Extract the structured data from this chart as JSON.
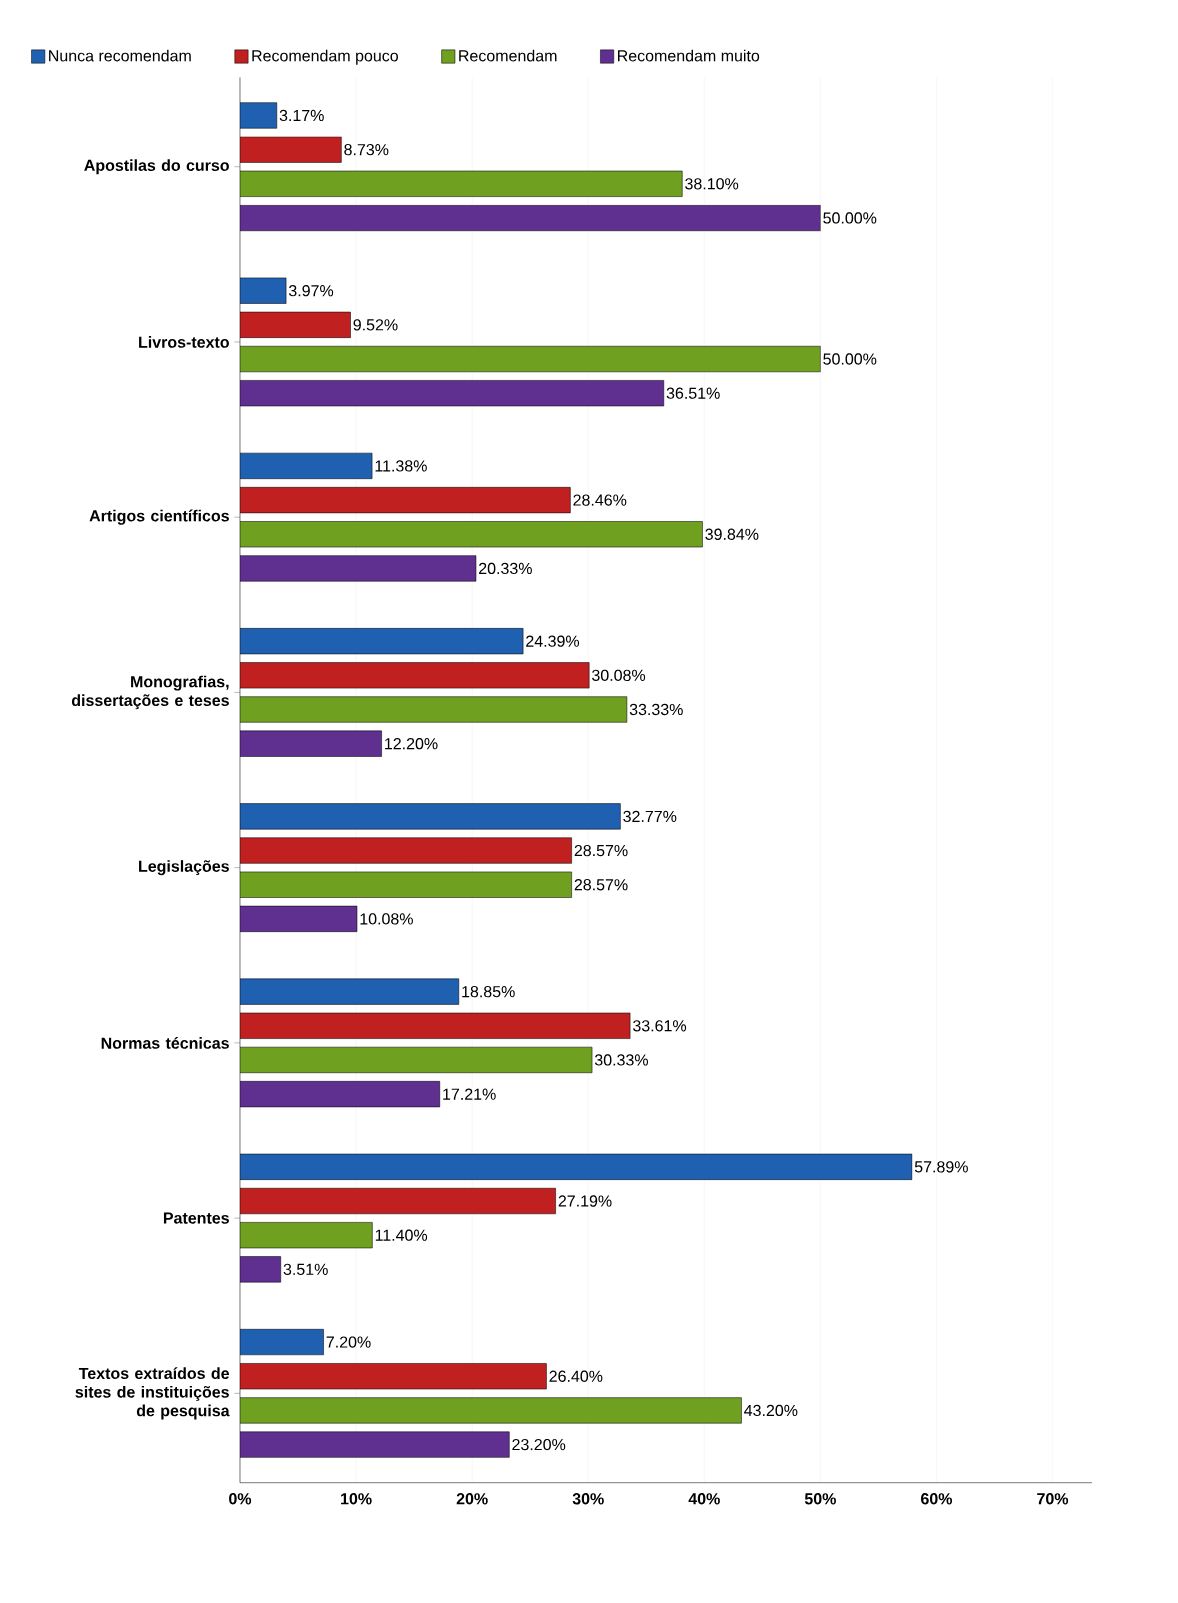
{
  "chart_data": {
    "type": "bar",
    "orientation": "horizontal",
    "categories": [
      "Apostilas do curso",
      "Livros-texto",
      "Artigos científicos",
      "Monografias, dissertações e teses",
      "Legislações",
      "Normas técnicas",
      "Patentes",
      "Textos extraídos de sites de instituições de pesquisa"
    ],
    "series": [
      {
        "name": "Nunca recomendam",
        "color": "#2060b0",
        "values": [
          3.17,
          3.97,
          11.38,
          24.39,
          32.77,
          18.85,
          57.89,
          7.2
        ],
        "value_labels": [
          "3.17%",
          "3.97%",
          "11.38%",
          "24.39%",
          "32.77%",
          "18.85%",
          "57.89%",
          "7.20%"
        ]
      },
      {
        "name": "Recomendam pouco",
        "color": "#c02020",
        "values": [
          8.73,
          9.52,
          28.46,
          30.08,
          28.57,
          33.61,
          27.19,
          26.4
        ],
        "value_labels": [
          "8.73%",
          "9.52%",
          "28.46%",
          "30.08%",
          "28.57%",
          "33.61%",
          "27.19%",
          "26.40%"
        ]
      },
      {
        "name": "Recomendam",
        "color": "#70a020",
        "values": [
          38.1,
          50.0,
          39.84,
          33.33,
          28.57,
          30.33,
          11.4,
          43.2
        ],
        "value_labels": [
          "38.10%",
          "50.00%",
          "39.84%",
          "33.33%",
          "28.57%",
          "30.33%",
          "11.40%",
          "43.20%"
        ]
      },
      {
        "name": "Recomendam muito",
        "color": "#603090",
        "values": [
          50.0,
          36.51,
          20.33,
          12.2,
          10.08,
          17.21,
          3.51,
          23.2
        ],
        "value_labels": [
          "50.00%",
          "36.51%",
          "20.33%",
          "12.20%",
          "10.08%",
          "17.21%",
          "3.51%",
          "23.20%"
        ]
      }
    ],
    "xlim": [
      0,
      73.4
    ],
    "xticks": [
      {
        "value": 0,
        "label": "0%"
      },
      {
        "value": 10,
        "label": "10%"
      },
      {
        "value": 20,
        "label": "20%"
      },
      {
        "value": 30,
        "label": "30%"
      },
      {
        "value": 40,
        "label": "40%"
      },
      {
        "value": 50,
        "label": "50%"
      },
      {
        "value": 60,
        "label": "60%"
      },
      {
        "value": 70,
        "label": "70%"
      }
    ],
    "grid": "x",
    "legend": "top"
  }
}
